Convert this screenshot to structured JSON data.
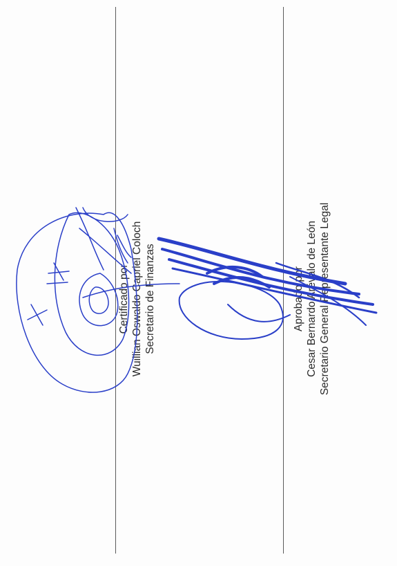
{
  "left_signatory": {
    "role_line": "Certificado por",
    "name_line": "Wuillian Oswaldo Capriel Coloch",
    "title_line": "Secretario de Finanzas"
  },
  "right_signatory": {
    "role_line": "Aprobado por",
    "name_line": "Cesar Bernardo Arévalo de León",
    "title_line": "Secretario General Representante Legal"
  },
  "ink_color": "#2a3fc8"
}
